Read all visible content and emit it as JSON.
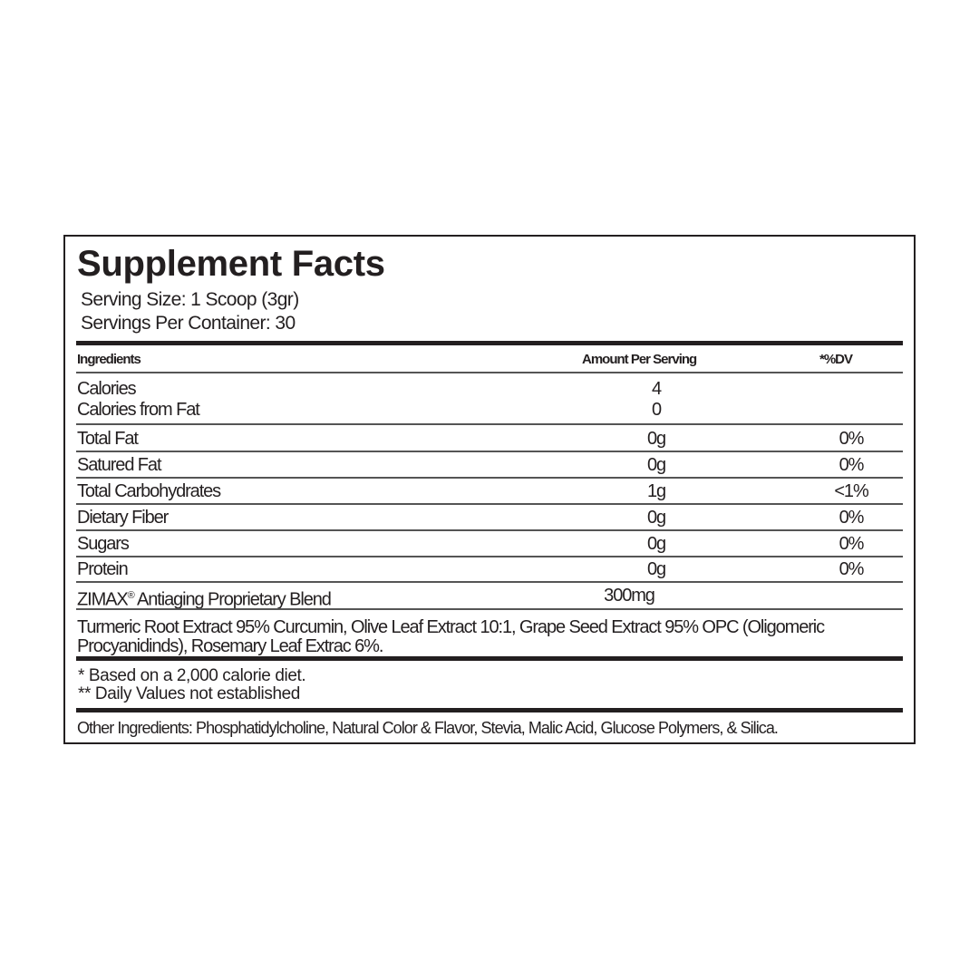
{
  "title": "Supplement Facts",
  "serving_size": "Serving Size: 1 Scoop (3gr)",
  "servings_per_container": "Servings Per Container: 30",
  "header": {
    "ingredients": "Ingredients",
    "amount": "Amount Per Serving",
    "dv": "*%DV"
  },
  "calories": {
    "label": "Calories",
    "amount": "4"
  },
  "calories_from_fat": {
    "label": "Calories from Fat",
    "amount": "0"
  },
  "rows": [
    {
      "label": "Total Fat",
      "amount": "0g",
      "dv": "0%"
    },
    {
      "label": "Satured Fat",
      "amount": "0g",
      "dv": "0%"
    },
    {
      "label": "Total Carbohydrates",
      "amount": "1g",
      "dv": "<1%"
    },
    {
      "label": "Dietary Fiber",
      "amount": "0g",
      "dv": "0%"
    },
    {
      "label": "Sugars",
      "amount": "0g",
      "dv": "0%"
    },
    {
      "label": "Protein",
      "amount": "0g",
      "dv": "0%"
    }
  ],
  "blend": {
    "brand": "ZIMAX",
    "mark": "®",
    "label": "Antiaging Proprietary Blend",
    "amount": "300mg"
  },
  "blend_ingredients": "Turmeric Root Extract 95% Curcumin, Olive Leaf Extract 10:1, Grape Seed Extract 95% OPC (Oligomeric Procyanidinds), Rosemary Leaf Extrac 6%.",
  "footnotes": [
    "* Based on a 2,000 calorie diet.",
    "** Daily Values not established"
  ],
  "other_ingredients": "Other Ingredients: Phosphatidylcholine, Natural Color & Flavor, Stevia, Malic Acid, Glucose Polymers, & Silica."
}
